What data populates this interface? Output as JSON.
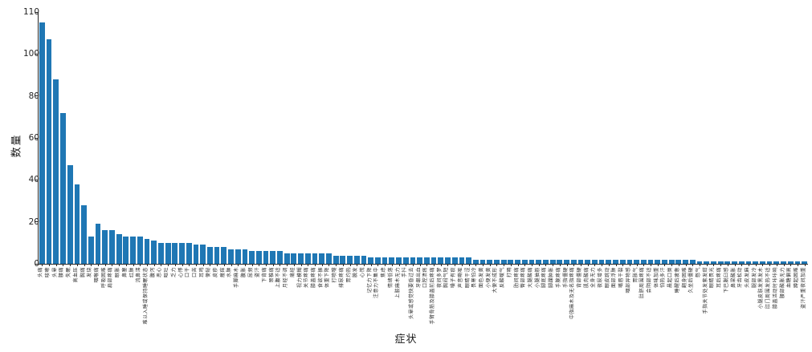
{
  "figure": {
    "background": "#ffffff",
    "bar_color": "#1f77b4",
    "axis_color": "#262626"
  },
  "chart_data": {
    "type": "bar",
    "xlabel": "症状",
    "ylabel": "数量",
    "yticks": [
      0,
      20,
      40,
      60,
      80,
      100,
      110
    ],
    "ylim": [
      0,
      120
    ],
    "grid": false,
    "legend": "none",
    "categories": [
      "头痛",
      "咳嗽",
      "头晕",
      "腰痛",
      "失眠",
      "高血压",
      "胸痛",
      "发烧",
      "咽喉痛",
      "呼吸困难",
      "肩部疼痛",
      "眼胀",
      "鼻塞",
      "红肿",
      "流鼻涕",
      "难以入睡或保持睡眠状态",
      "腹泻",
      "恶心",
      "呕吐",
      "乏力",
      "心悸",
      "口干",
      "口苦",
      "耳鸣",
      "便秘",
      "皮疹",
      "瘙痒",
      "水肿",
      "手脚麻木",
      "腹胀",
      "尿频",
      "盗汗",
      "下背痛",
      "颈椎痛",
      "上腹不适",
      "月经不调",
      "痛经",
      "视力模糊",
      "关节疼痛",
      "膝盖疼痛",
      "食欲不振",
      "体重下降",
      "打喷嚏",
      "排尿疼痛",
      "胃灼热",
      "脱发",
      "心慌",
      "记忆力下降",
      "注意力不集中",
      "焦虑",
      "情绪低落",
      "上肢麻木无力",
      "手抖",
      "头晕或感觉快要昏过去",
      "牙龈出血",
      "口腔溃疡",
      "手臂骨筋及膝盖前后疼痛",
      "夜间多梦",
      "胸闷气短",
      "嗓子有痰",
      "声音嘶哑",
      "眼睛干涩",
      "畏寒怕冷",
      "面色发黄",
      "小便发黄",
      "大便不成形",
      "反酸嗳气",
      "打嗝",
      "肋间疼痛",
      "臀部疼痛",
      "大腿酸痛",
      "小腿抽筋",
      "脚底疼痛",
      "脚踝肿胀",
      "手腕疼痛",
      "手指僵硬",
      "中指麻木及无名指疼痛",
      "背部僵硬",
      "肌肉酸痛",
      "全身无力",
      "夜尿增多",
      "眼皮跳动",
      "面部浮肿",
      "嘴唇干裂",
      "咽部异物感",
      "胃胀气",
      "肚脐周围疼痛",
      "会阴部不适",
      "体味加重",
      "怕热多汗",
      "晨起口臭",
      "睡醒后疲惫",
      "翻身困难",
      "久坐后僵硬",
      "憋气",
      "手指关节处发紫发绀",
      "眼睛畏光",
      "耳后疼痛",
      "下巴脱臼感",
      "鼻梁酸胀",
      "牙齿松动",
      "头皮发麻",
      "腿部发冷",
      "小腿皮肤发黑发木",
      "肛门周围发热不适",
      "膝盖活动时咔咔响",
      "腰部酸胀无力",
      "血糖偏高",
      "蹲起困难",
      "盗汗严重夜间加重"
    ],
    "values": [
      115,
      107,
      88,
      72,
      47,
      38,
      28,
      13,
      19,
      16,
      16,
      14,
      13,
      13,
      13,
      12,
      11,
      10,
      10,
      10,
      10,
      10,
      9,
      9,
      8,
      8,
      8,
      7,
      7,
      7,
      6,
      6,
      6,
      6,
      6,
      5,
      5,
      5,
      5,
      5,
      5,
      5,
      4,
      4,
      4,
      4,
      4,
      3,
      3,
      3,
      3,
      3,
      3,
      3,
      3,
      3,
      3,
      3,
      3,
      3,
      3,
      3,
      2,
      2,
      2,
      2,
      2,
      2,
      2,
      2,
      2,
      2,
      2,
      2,
      2,
      2,
      2,
      2,
      2,
      2,
      2,
      2,
      2,
      2,
      2,
      2,
      2,
      2,
      2,
      2,
      2,
      2,
      2,
      2,
      1,
      1,
      1,
      1,
      1,
      1,
      1,
      1,
      1,
      1,
      1,
      1,
      1,
      1,
      1,
      1
    ]
  }
}
